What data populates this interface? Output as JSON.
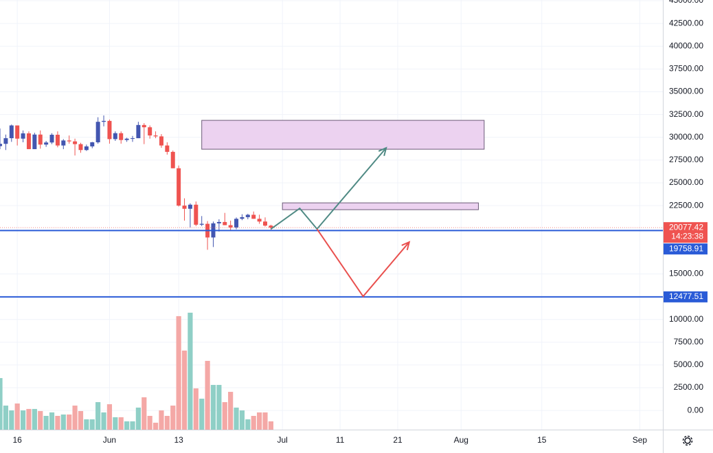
{
  "chart_data": {
    "type": "candlestick",
    "x": [
      "05-13",
      "05-14",
      "05-15",
      "05-16",
      "05-17",
      "05-18",
      "05-19",
      "05-20",
      "05-21",
      "05-22",
      "05-23",
      "05-24",
      "05-25",
      "05-26",
      "05-27",
      "05-28",
      "05-29",
      "05-30",
      "05-31",
      "06-01",
      "06-02",
      "06-03",
      "06-04",
      "06-05",
      "06-06",
      "06-07",
      "06-08",
      "06-09",
      "06-10",
      "06-11",
      "06-12",
      "06-13",
      "06-14",
      "06-15",
      "06-16",
      "06-17",
      "06-18",
      "06-19",
      "06-20",
      "06-21",
      "06-22",
      "06-23",
      "06-24",
      "06-25",
      "06-26",
      "06-27",
      "06-28",
      "06-29"
    ],
    "open": [
      29030,
      29280,
      29900,
      31300,
      29850,
      30430,
      28700,
      30300,
      29200,
      29430,
      30280,
      29100,
      29650,
      29550,
      29250,
      28600,
      29000,
      29450,
      31700,
      31800,
      29800,
      30450,
      29700,
      29850,
      29900,
      31350,
      31100,
      30200,
      30100,
      29100,
      28400,
      26600,
      22500,
      22150,
      22600,
      20400,
      20500,
      19000,
      20550,
      20700,
      20350,
      20100,
      21050,
      21230,
      21490,
      21050,
      20750,
      20300
    ],
    "high": [
      30970,
      30300,
      31400,
      31300,
      30750,
      30650,
      30500,
      30750,
      29600,
      30450,
      30650,
      29800,
      30200,
      29850,
      29400,
      29200,
      29500,
      32200,
      32400,
      31950,
      30650,
      30650,
      29950,
      30150,
      31700,
      31550,
      31300,
      30650,
      30350,
      29450,
      28550,
      26900,
      23300,
      22750,
      22950,
      21350,
      20800,
      20750,
      21000,
      21700,
      20850,
      21200,
      21550,
      21600,
      21850,
      21500,
      21200,
      20400
    ],
    "low": [
      28700,
      28600,
      29500,
      29100,
      29450,
      28700,
      28700,
      28750,
      28950,
      29250,
      28900,
      28700,
      29300,
      28000,
      28300,
      28500,
      28800,
      29300,
      31200,
      29300,
      29600,
      29300,
      29500,
      29500,
      29900,
      29250,
      29850,
      29900,
      28850,
      28100,
      26600,
      22400,
      20850,
      20100,
      20250,
      20250,
      17650,
      17950,
      19650,
      20350,
      19750,
      19900,
      20900,
      21000,
      21050,
      20500,
      20200,
      19850
    ],
    "close": [
      29280,
      29900,
      31300,
      29850,
      30430,
      28700,
      30300,
      29200,
      29430,
      30280,
      29100,
      29650,
      29550,
      29250,
      28600,
      29000,
      29450,
      31700,
      31800,
      29800,
      30450,
      29700,
      29850,
      29900,
      31350,
      31100,
      30200,
      30100,
      29100,
      28400,
      26600,
      22500,
      22150,
      22600,
      20400,
      20500,
      19000,
      20550,
      20700,
      20350,
      20100,
      21050,
      21230,
      21490,
      21050,
      20750,
      20300,
      20077.42
    ],
    "volume": [
      5660,
      2640,
      2110,
      2870,
      2110,
      2270,
      2270,
      2040,
      1510,
      1890,
      1510,
      1660,
      1660,
      2640,
      2040,
      1130,
      1130,
      3020,
      1890,
      2790,
      1360,
      1360,
      910,
      910,
      2420,
      3550,
      1510,
      760,
      2110,
      1510,
      2640,
      12460,
      8680,
      12840,
      4530,
      3400,
      7550,
      4910,
      4910,
      3020,
      4150,
      2420,
      2110,
      1130,
      1510,
      1890,
      1890,
      910
    ],
    "up_color": "#4356b0",
    "down_color": "#ef5350",
    "up_volume_color": "#8fcfc6",
    "down_volume_color": "#f4a8a6",
    "xlim": [
      "05-13",
      "09-05"
    ],
    "ylim": [
      -2100,
      45075
    ],
    "xticks": [
      {
        "value": "05-16",
        "label": "16"
      },
      {
        "value": "06-01",
        "label": "Jun"
      },
      {
        "value": "06-13",
        "label": "13"
      },
      {
        "value": "07-01",
        "label": "Jul"
      },
      {
        "value": "07-11",
        "label": "11"
      },
      {
        "value": "07-21",
        "label": "21"
      },
      {
        "value": "08-01",
        "label": "Aug"
      },
      {
        "value": "08-15",
        "label": "15"
      },
      {
        "value": "09-01",
        "label": "Sep"
      }
    ],
    "yticks": [
      {
        "value": 0,
        "label": "0.00"
      },
      {
        "value": 2500,
        "label": "2500.00"
      },
      {
        "value": 5000,
        "label": "5000.00"
      },
      {
        "value": 7500,
        "label": "7500.00"
      },
      {
        "value": 10000,
        "label": "10000.00"
      },
      {
        "value": 15000,
        "label": "15000.00"
      },
      {
        "value": 22500,
        "label": "22500.00"
      },
      {
        "value": 25000,
        "label": "25000.00"
      },
      {
        "value": 27500,
        "label": "27500.00"
      },
      {
        "value": 30000,
        "label": "30000.00"
      },
      {
        "value": 32500,
        "label": "32500.00"
      },
      {
        "value": 35000,
        "label": "35000.00"
      },
      {
        "value": 37500,
        "label": "37500.00"
      },
      {
        "value": 40000,
        "label": "40000.00"
      },
      {
        "value": 42500,
        "label": "42500.00"
      },
      {
        "value": 45000,
        "label": "45000.00"
      }
    ],
    "grid": true,
    "last_price": {
      "value": 20077.42,
      "countdown": "14:23:38",
      "color": "#ef5350"
    },
    "price_lines": [
      {
        "value": 19758.91,
        "color": "#2a5bd7"
      },
      {
        "value": 12477.51,
        "color": "#2a5bd7"
      }
    ],
    "rectangles": [
      {
        "x": [
          "06-17",
          "08-05"
        ],
        "y": [
          31860,
          28690
        ],
        "fill": "#ecd2f0",
        "stroke": "#6b5a78"
      },
      {
        "x": [
          "07-01",
          "08-04"
        ],
        "y": [
          22800,
          22050
        ],
        "fill": "#ecd2f0",
        "stroke": "#6b5a78"
      }
    ],
    "paths": [
      {
        "x": [
          "06-29",
          "07-04",
          "07-07",
          "07-19"
        ],
        "y": [
          19930,
          22200,
          19930,
          28840
        ],
        "color": "#4f8a84"
      },
      {
        "x": [
          "07-07",
          "07-15",
          "07-23"
        ],
        "y": [
          19930,
          12530,
          18500
        ],
        "color": "#e9504e"
      }
    ]
  }
}
